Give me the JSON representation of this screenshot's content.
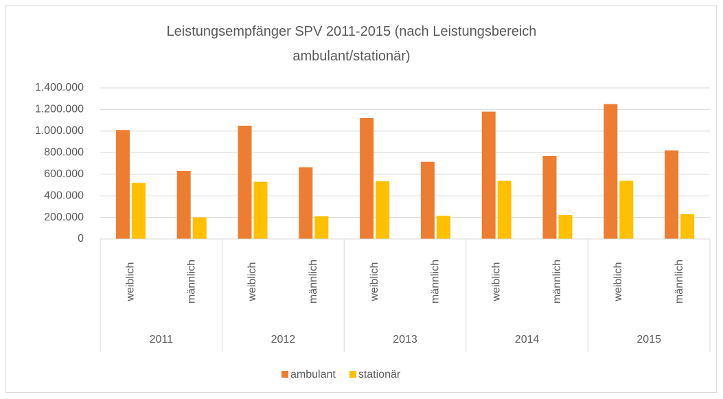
{
  "chart_data": {
    "type": "bar",
    "title": "Leistungsempfänger SPV 2011-2015 (nach Leistungsbereich ambulant/stationär)",
    "categories": [
      "weiblich",
      "männlich",
      "weiblich",
      "männlich",
      "weiblich",
      "männlich",
      "weiblich",
      "männlich",
      "weiblich",
      "männlich"
    ],
    "category_groups": [
      "2011",
      "2012",
      "2013",
      "2014",
      "2015"
    ],
    "series": [
      {
        "name": "ambulant",
        "color": "#ed7d31",
        "values": [
          1010000,
          630000,
          1050000,
          665000,
          1120000,
          715000,
          1180000,
          770000,
          1250000,
          820000
        ]
      },
      {
        "name": "stationär",
        "color": "#ffc000",
        "values": [
          520000,
          200000,
          530000,
          210000,
          535000,
          215000,
          540000,
          222000,
          540000,
          230000
        ]
      }
    ],
    "ylim": [
      0,
      1400000
    ],
    "yticks": [
      0,
      {
        "value": 200000,
        "label": "200.000"
      },
      {
        "value": 400000,
        "label": "400.000"
      },
      {
        "value": 600000,
        "label": "600.000"
      },
      {
        "value": 800000,
        "label": "800.000"
      },
      {
        "value": 1000000,
        "label": "1.000.000"
      },
      {
        "value": 1200000,
        "label": "1.200.000"
      },
      {
        "value": 1400000,
        "label": "1.400.000"
      }
    ],
    "grid": true,
    "legend": "bottom"
  }
}
